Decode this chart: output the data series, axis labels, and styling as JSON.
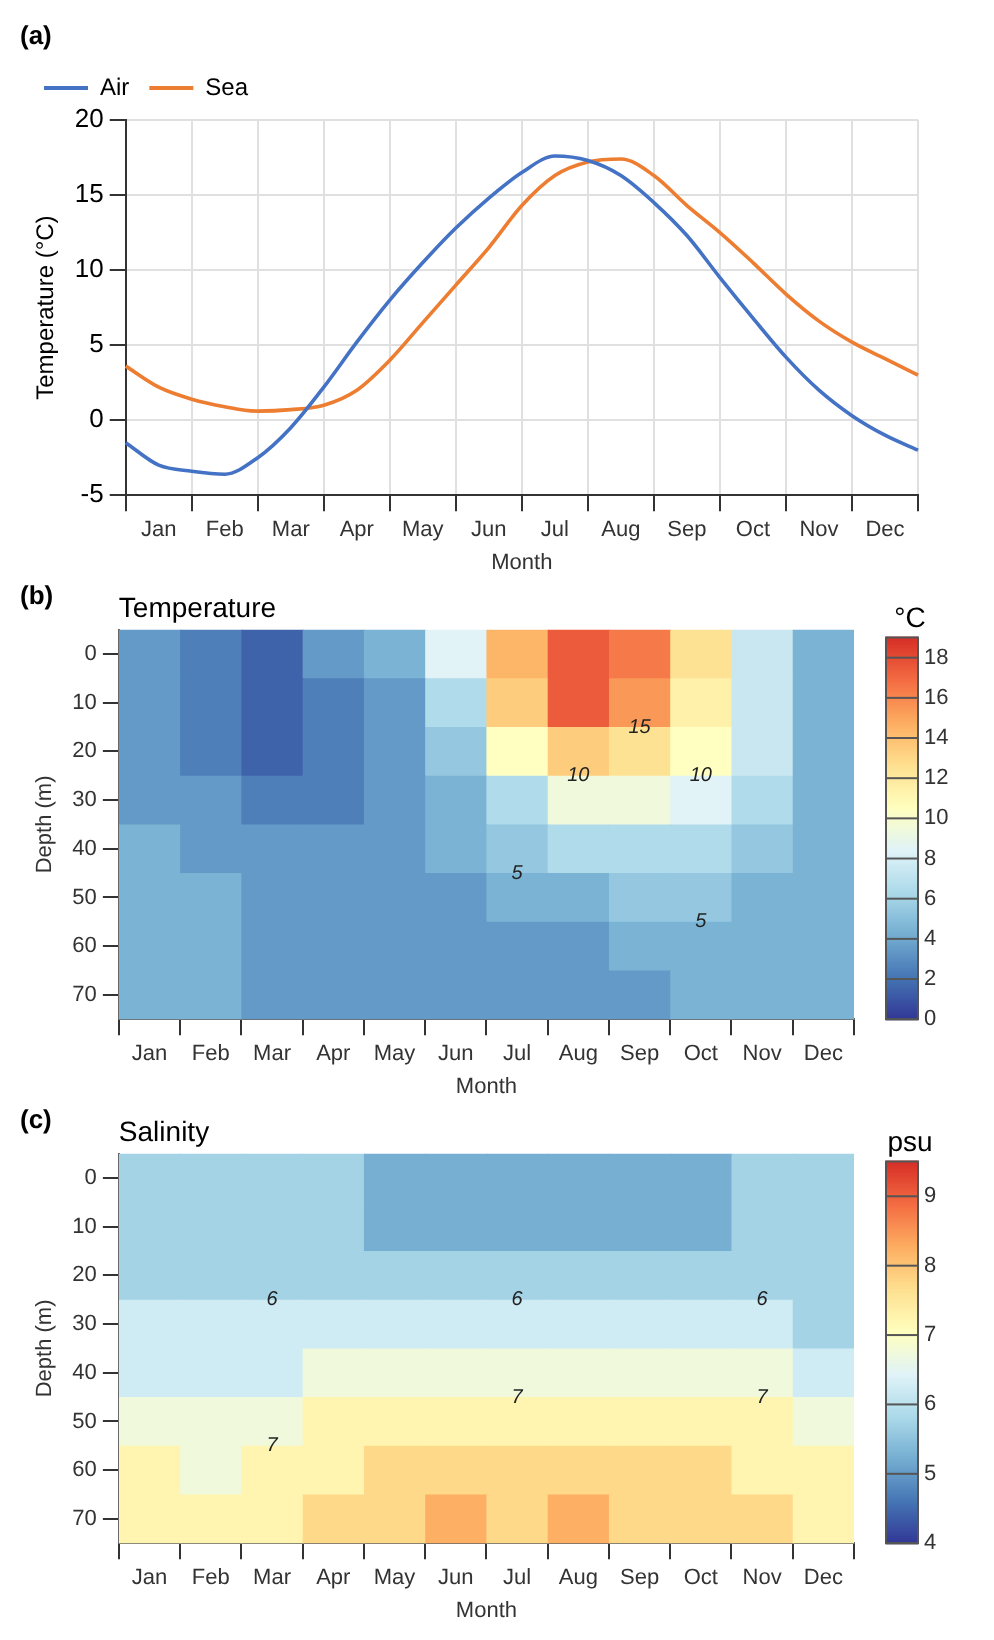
{
  "chart_data": [
    {
      "type": "line",
      "annotations": [
        "(a)"
      ],
      "xlabel": "Month",
      "ylabel": "Temperature (°C)",
      "legend": "top left",
      "grid": true,
      "marker": "none",
      "categories": [
        null,
        "Jan",
        null,
        "Feb",
        null,
        "Mar",
        null,
        "Apr",
        null,
        "May",
        null,
        "Jun",
        null,
        "Jul",
        null,
        "Aug",
        null,
        "Sep",
        null,
        "Oct",
        null,
        "Nov",
        null,
        "Dec",
        null
      ],
      "ylim": [
        -5,
        20
      ],
      "yticks": [
        -5,
        0,
        5,
        10,
        15,
        20
      ],
      "series": [
        {
          "name": "Air",
          "color": "#4472c4",
          "values": [
            -1.5,
            -3.0,
            -3.4,
            -3.6,
            -2.5,
            -0.5,
            2.2,
            5.2,
            8.0,
            10.5,
            12.8,
            14.8,
            16.5,
            17.6,
            17.3,
            16.3,
            14.5,
            12.3,
            9.5,
            6.8,
            4.2,
            2.0,
            0.3,
            -1.0,
            -2.0
          ]
        },
        {
          "name": "Sea",
          "color": "#ed7d31",
          "values": [
            3.6,
            2.2,
            1.4,
            0.9,
            0.6,
            0.7,
            1.0,
            2.0,
            4.0,
            6.5,
            9.0,
            11.5,
            14.3,
            16.3,
            17.2,
            17.4,
            16.3,
            14.3,
            12.5,
            10.5,
            8.4,
            6.6,
            5.2,
            4.1,
            3.0
          ]
        }
      ]
    },
    {
      "type": "heatmap",
      "title": "Temperature",
      "annotations": [
        "(b)",
        "15",
        "10",
        "10",
        "5",
        "5"
      ],
      "xlabel": "Month",
      "ylabel": "Depth (m)",
      "clabel": "°C",
      "clim": [
        0,
        19
      ],
      "cticks": [
        0,
        2,
        4,
        6,
        8,
        10,
        12,
        14,
        16,
        18
      ],
      "categories": [
        "Jan",
        "Feb",
        "Mar",
        "Apr",
        "May",
        "Jun",
        "Jul",
        "Aug",
        "Sep",
        "Oct",
        "Nov",
        "Dec"
      ],
      "y_categories": [
        "0",
        "10",
        "20",
        "30",
        "40",
        "50",
        "60",
        "70"
      ],
      "cells": [
        [
          3.5,
          2.5,
          1.5,
          3.5,
          4.5,
          8.5,
          14.5,
          17.5,
          16.5,
          12.5,
          7.5,
          4.5
        ],
        [
          3.5,
          2.5,
          1.5,
          2.5,
          3.5,
          6.5,
          13.5,
          17.5,
          15.5,
          11.5,
          7.5,
          4.5
        ],
        [
          3.5,
          2.5,
          1.5,
          2.5,
          3.5,
          5.5,
          10.5,
          13.5,
          12.5,
          10.5,
          7.5,
          4.5
        ],
        [
          3.5,
          3.5,
          2.5,
          2.5,
          3.5,
          4.5,
          6.5,
          9.5,
          9.5,
          8.5,
          6.5,
          4.5
        ],
        [
          4.5,
          3.5,
          3.5,
          3.5,
          3.5,
          4.5,
          5.5,
          6.5,
          6.5,
          6.5,
          5.5,
          4.5
        ],
        [
          4.5,
          4.5,
          3.5,
          3.5,
          3.5,
          3.5,
          4.5,
          4.5,
          5.5,
          5.5,
          4.5,
          4.5
        ],
        [
          4.5,
          4.5,
          3.5,
          3.5,
          3.5,
          3.5,
          3.5,
          3.5,
          4.5,
          4.5,
          4.5,
          4.5
        ],
        [
          4.5,
          4.5,
          3.5,
          3.5,
          3.5,
          3.5,
          3.5,
          3.5,
          3.5,
          4.5,
          4.5,
          4.5
        ]
      ]
    },
    {
      "type": "heatmap",
      "title": "Salinity",
      "annotations": [
        "(c)",
        "6",
        "6",
        "6",
        "7",
        "7",
        "7"
      ],
      "xlabel": "Month",
      "ylabel": "Depth (m)",
      "clabel": "psu",
      "clim": [
        4,
        9.5
      ],
      "cticks": [
        4,
        5,
        6,
        7,
        8,
        9
      ],
      "categories": [
        "Jan",
        "Feb",
        "Mar",
        "Apr",
        "May",
        "Jun",
        "Jul",
        "Aug",
        "Sep",
        "Oct",
        "Nov",
        "Dec"
      ],
      "y_categories": [
        "0",
        "10",
        "20",
        "30",
        "40",
        "50",
        "60",
        "70"
      ],
      "cells": [
        [
          5.75,
          5.75,
          5.75,
          5.75,
          5.25,
          5.25,
          5.25,
          5.25,
          5.25,
          5.25,
          5.75,
          5.75
        ],
        [
          5.75,
          5.75,
          5.75,
          5.75,
          5.25,
          5.25,
          5.25,
          5.25,
          5.25,
          5.25,
          5.75,
          5.75
        ],
        [
          5.75,
          5.75,
          5.75,
          5.75,
          5.75,
          5.75,
          5.75,
          5.75,
          5.75,
          5.75,
          5.75,
          5.75
        ],
        [
          6.25,
          6.25,
          6.25,
          6.25,
          6.25,
          6.25,
          6.25,
          6.25,
          6.25,
          6.25,
          6.25,
          5.75
        ],
        [
          6.25,
          6.25,
          6.25,
          6.75,
          6.75,
          6.75,
          6.75,
          6.75,
          6.75,
          6.75,
          6.75,
          6.25
        ],
        [
          6.75,
          6.75,
          6.75,
          7.25,
          7.25,
          7.25,
          7.25,
          7.25,
          7.25,
          7.25,
          7.25,
          6.75
        ],
        [
          7.25,
          6.75,
          7.25,
          7.25,
          7.75,
          7.75,
          7.75,
          7.75,
          7.75,
          7.75,
          7.25,
          7.25
        ],
        [
          7.25,
          7.25,
          7.25,
          7.75,
          7.75,
          8.25,
          7.75,
          8.25,
          7.75,
          7.75,
          7.75,
          7.25
        ]
      ]
    }
  ]
}
